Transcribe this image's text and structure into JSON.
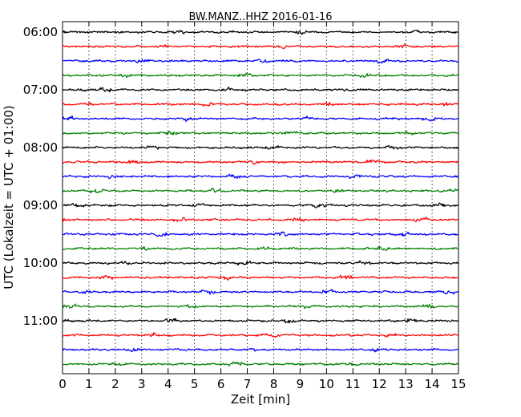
{
  "chart_data": {
    "type": "line",
    "title": "BW.MANZ..HHZ 2016-01-16",
    "xlabel": "Zeit  [min]",
    "ylabel": "UTC (Lokalzeit = UTC + 01:00)",
    "xlim": [
      0,
      15
    ],
    "x_ticks": [
      0,
      1,
      2,
      3,
      4,
      5,
      6,
      7,
      8,
      9,
      10,
      11,
      12,
      13,
      14,
      15
    ],
    "x_tick_labels": [
      "0",
      "1",
      "2",
      "3",
      "4",
      "5",
      "6",
      "7",
      "8",
      "9",
      "10",
      "11",
      "12",
      "13",
      "14",
      "15"
    ],
    "y_tick_labels": [
      "06:00",
      "07:00",
      "08:00",
      "09:00",
      "10:00",
      "11:00"
    ],
    "vertical_grid": true,
    "grid_style": "dotted",
    "trace_colors": [
      "#000000",
      "#ff0000",
      "#0000ff",
      "#008000"
    ],
    "trace_count": 24,
    "trace_interval_minutes": 15
  }
}
